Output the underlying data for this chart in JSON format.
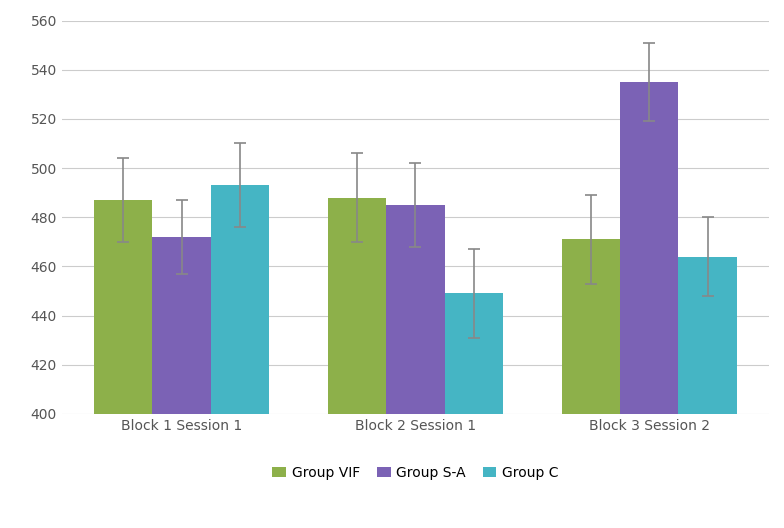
{
  "groups": [
    "Block 1 Session 1",
    "Block 2 Session 1",
    "Block 3 Session 2"
  ],
  "series": [
    "Group VIF",
    "Group S-A",
    "Group C"
  ],
  "values": [
    [
      487,
      472,
      493
    ],
    [
      488,
      485,
      449
    ],
    [
      471,
      535,
      464
    ]
  ],
  "errors": [
    [
      17,
      15,
      17
    ],
    [
      18,
      17,
      18
    ],
    [
      18,
      16,
      16
    ]
  ],
  "colors": [
    "#8db04a",
    "#7b62b5",
    "#45b5c4"
  ],
  "ylim": [
    400,
    560
  ],
  "ybase": 400,
  "yticks": [
    400,
    420,
    440,
    460,
    480,
    500,
    520,
    540,
    560
  ],
  "bar_width": 0.25,
  "legend_labels": [
    "Group VIF",
    "Group S-A",
    "Group C"
  ],
  "background_color": "#ffffff",
  "grid_color": "#cccccc",
  "error_color": "#888888",
  "tick_fontsize": 10,
  "label_fontsize": 10
}
